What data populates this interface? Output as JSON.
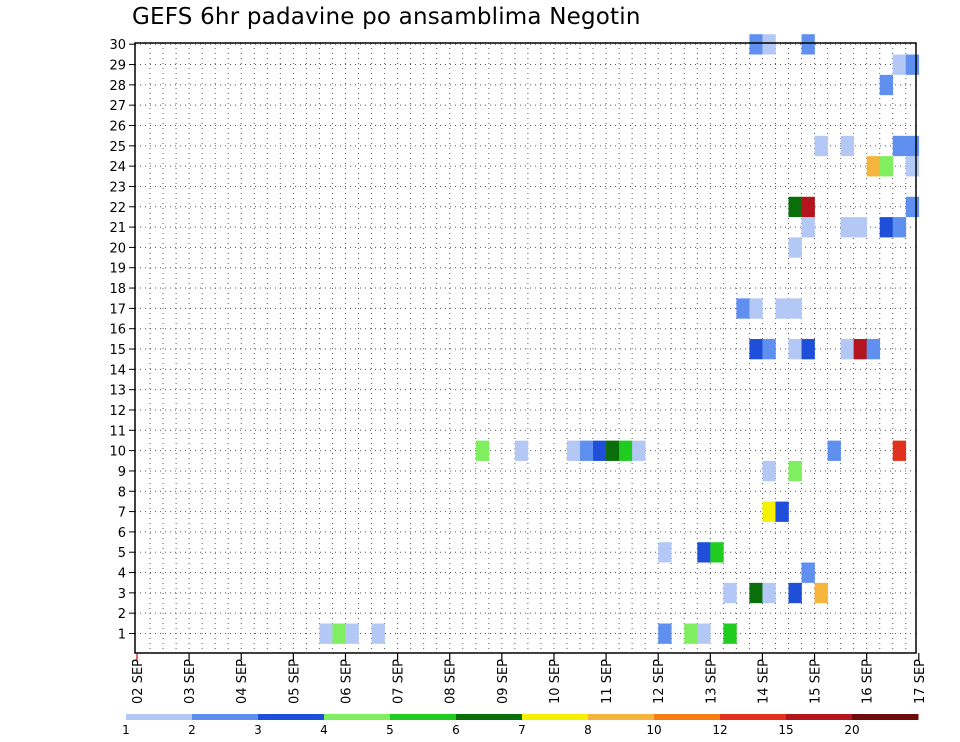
{
  "chart_data": {
    "type": "heatmap",
    "title": "GEFS 6hr padavine po ansamblima Negotin",
    "xlabel": "",
    "ylabel": "",
    "x_tick_labels": [
      "02 SEP",
      "03 SEP",
      "04 SEP",
      "05 SEP",
      "06 SEP",
      "07 SEP",
      "08 SEP",
      "09 SEP",
      "10 SEP",
      "11 SEP",
      "12 SEP",
      "13 SEP",
      "14 SEP",
      "15 SEP",
      "16 SEP",
      "17 SEP"
    ],
    "y_tick_labels": [
      "1",
      "2",
      "3",
      "4",
      "5",
      "6",
      "7",
      "8",
      "9",
      "10",
      "11",
      "12",
      "13",
      "14",
      "15",
      "16",
      "17",
      "18",
      "19",
      "20",
      "21",
      "22",
      "23",
      "24",
      "25",
      "26",
      "27",
      "28",
      "29",
      "30"
    ],
    "xlim": [
      0,
      60
    ],
    "ylim": [
      0,
      30
    ],
    "grid": true,
    "cell_units": "6-hour steps from 02 SEP 00Z (x) by ensemble member (y)",
    "colorbar": {
      "labels": [
        "1",
        "2",
        "3",
        "4",
        "5",
        "6",
        "7",
        "8",
        "10",
        "12",
        "15",
        "20"
      ],
      "colors": [
        "#b4c8f5",
        "#5f8fef",
        "#1f4fd8",
        "#7fef5f",
        "#1fcc1f",
        "#0a6e0a",
        "#f5f000",
        "#f5b43c",
        "#f57f14",
        "#e0321c",
        "#b4141e",
        "#6e0a0a"
      ]
    },
    "cells": [
      {
        "x": 47.5,
        "y": 30,
        "v": 2
      },
      {
        "x": 48.5,
        "y": 30,
        "v": 1
      },
      {
        "x": 51.5,
        "y": 30,
        "v": 2
      },
      {
        "x": 58.5,
        "y": 29,
        "v": 1
      },
      {
        "x": 59.5,
        "y": 29,
        "v": 2
      },
      {
        "x": 57.5,
        "y": 28,
        "v": 2
      },
      {
        "x": 52.5,
        "y": 25,
        "v": 1
      },
      {
        "x": 54.5,
        "y": 25,
        "v": 1
      },
      {
        "x": 58.5,
        "y": 25,
        "v": 2
      },
      {
        "x": 59.5,
        "y": 25,
        "v": 2
      },
      {
        "x": 56.5,
        "y": 24,
        "v": 8
      },
      {
        "x": 57.5,
        "y": 24,
        "v": 4
      },
      {
        "x": 59.5,
        "y": 24,
        "v": 1
      },
      {
        "x": 50.5,
        "y": 22,
        "v": 6
      },
      {
        "x": 51.5,
        "y": 22,
        "v": 15
      },
      {
        "x": 59.5,
        "y": 22,
        "v": 2
      },
      {
        "x": 51.5,
        "y": 21,
        "v": 1
      },
      {
        "x": 54.5,
        "y": 21,
        "v": 1
      },
      {
        "x": 55.5,
        "y": 21,
        "v": 1
      },
      {
        "x": 57.5,
        "y": 21,
        "v": 3
      },
      {
        "x": 58.5,
        "y": 21,
        "v": 2
      },
      {
        "x": 50.5,
        "y": 20,
        "v": 1
      },
      {
        "x": 46.5,
        "y": 17,
        "v": 2
      },
      {
        "x": 47.5,
        "y": 17,
        "v": 1
      },
      {
        "x": 49.5,
        "y": 17,
        "v": 1
      },
      {
        "x": 50.5,
        "y": 17,
        "v": 1
      },
      {
        "x": 47.5,
        "y": 15,
        "v": 3
      },
      {
        "x": 48.5,
        "y": 15,
        "v": 2
      },
      {
        "x": 50.5,
        "y": 15,
        "v": 1
      },
      {
        "x": 51.5,
        "y": 15,
        "v": 3
      },
      {
        "x": 54.5,
        "y": 15,
        "v": 1
      },
      {
        "x": 55.5,
        "y": 15,
        "v": 15
      },
      {
        "x": 56.5,
        "y": 15,
        "v": 2
      },
      {
        "x": 26.5,
        "y": 10,
        "v": 4
      },
      {
        "x": 29.5,
        "y": 10,
        "v": 1
      },
      {
        "x": 33.5,
        "y": 10,
        "v": 1
      },
      {
        "x": 34.5,
        "y": 10,
        "v": 2
      },
      {
        "x": 35.5,
        "y": 10,
        "v": 3
      },
      {
        "x": 36.5,
        "y": 10,
        "v": 6
      },
      {
        "x": 37.5,
        "y": 10,
        "v": 5
      },
      {
        "x": 38.5,
        "y": 10,
        "v": 1
      },
      {
        "x": 53.5,
        "y": 10,
        "v": 2
      },
      {
        "x": 58.5,
        "y": 10,
        "v": 12
      },
      {
        "x": 48.5,
        "y": 9,
        "v": 1
      },
      {
        "x": 50.5,
        "y": 9,
        "v": 4
      },
      {
        "x": 48.5,
        "y": 7,
        "v": 7
      },
      {
        "x": 49.5,
        "y": 7,
        "v": 3
      },
      {
        "x": 40.5,
        "y": 5,
        "v": 1
      },
      {
        "x": 43.5,
        "y": 5,
        "v": 3
      },
      {
        "x": 44.5,
        "y": 5,
        "v": 5
      },
      {
        "x": 51.5,
        "y": 4,
        "v": 2
      },
      {
        "x": 45.5,
        "y": 3,
        "v": 1
      },
      {
        "x": 47.5,
        "y": 3,
        "v": 6
      },
      {
        "x": 48.5,
        "y": 3,
        "v": 1
      },
      {
        "x": 50.5,
        "y": 3,
        "v": 3
      },
      {
        "x": 52.5,
        "y": 3,
        "v": 8
      },
      {
        "x": 14.5,
        "y": 1,
        "v": 1
      },
      {
        "x": 15.5,
        "y": 1,
        "v": 4
      },
      {
        "x": 16.5,
        "y": 1,
        "v": 1
      },
      {
        "x": 18.5,
        "y": 1,
        "v": 1
      },
      {
        "x": 40.5,
        "y": 1,
        "v": 2
      },
      {
        "x": 42.5,
        "y": 1,
        "v": 4
      },
      {
        "x": 43.5,
        "y": 1,
        "v": 1
      },
      {
        "x": 45.5,
        "y": 1,
        "v": 5
      }
    ]
  }
}
